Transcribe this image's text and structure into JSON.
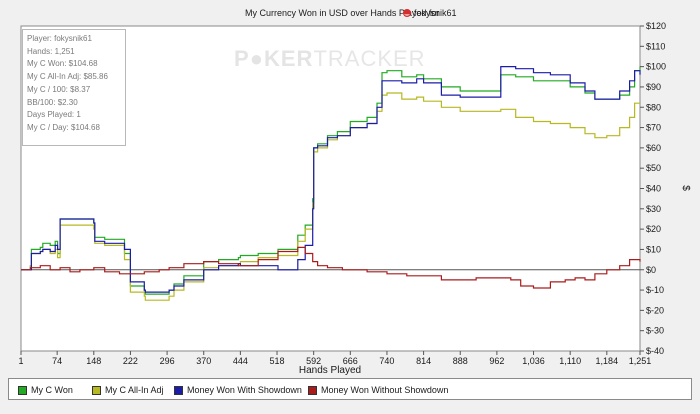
{
  "chart_data": {
    "type": "line",
    "title_prefix": "My Currency Won in USD over Hands Played for",
    "player": "fokysnik61",
    "xlabel": "Hands Played",
    "ylabel": "$",
    "x_ticks": [
      "1",
      "74",
      "148",
      "222",
      "296",
      "370",
      "444",
      "518",
      "592",
      "666",
      "740",
      "814",
      "888",
      "962",
      "1,036",
      "1,110",
      "1,184",
      "1,251"
    ],
    "x_tick_values": [
      1,
      74,
      148,
      222,
      296,
      370,
      444,
      518,
      592,
      666,
      740,
      814,
      888,
      962,
      1036,
      1110,
      1184,
      1251
    ],
    "y_ticks": [
      "$120",
      "$110",
      "$100",
      "$90",
      "$80",
      "$70",
      "$60",
      "$50",
      "$40",
      "$30",
      "$20",
      "$10",
      "$0",
      "$-10",
      "$-20",
      "$-30",
      "$-40"
    ],
    "xlim": [
      1,
      1251
    ],
    "ylim": [
      -40,
      120
    ],
    "grid": false,
    "series": [
      {
        "name": "My C Won",
        "color": "#22aa22",
        "x": [
          1,
          20,
          22,
          40,
          45,
          60,
          70,
          75,
          80,
          148,
          150,
          170,
          210,
          222,
          250,
          252,
          300,
          310,
          330,
          370,
          400,
          440,
          444,
          480,
          520,
          560,
          575,
          590,
          592,
          600,
          620,
          640,
          666,
          700,
          720,
          730,
          740,
          770,
          800,
          814,
          850,
          888,
          962,
          970,
          1000,
          1036,
          1070,
          1110,
          1140,
          1160,
          1184,
          1210,
          1230,
          1240,
          1251
        ],
        "y": [
          0,
          2,
          10,
          11,
          13,
          12,
          14,
          8,
          25,
          23,
          16,
          15,
          8,
          -8,
          -10,
          -12,
          -10,
          -7,
          -3,
          4,
          5,
          6,
          7,
          8,
          10,
          17,
          22,
          35,
          60,
          62,
          66,
          68,
          73,
          75,
          82,
          97,
          98,
          95,
          96,
          94,
          90,
          88,
          88,
          96,
          95,
          93,
          93,
          90,
          87,
          84,
          84,
          86,
          90,
          98,
          100
        ]
      },
      {
        "name": "My C All-In Adj",
        "color": "#b8b820",
        "x": [
          1,
          20,
          22,
          40,
          45,
          60,
          70,
          75,
          80,
          148,
          150,
          170,
          210,
          222,
          250,
          252,
          300,
          310,
          330,
          370,
          400,
          440,
          444,
          480,
          520,
          560,
          575,
          590,
          592,
          600,
          620,
          640,
          666,
          700,
          720,
          730,
          740,
          770,
          800,
          814,
          850,
          888,
          962,
          970,
          1000,
          1036,
          1070,
          1110,
          1140,
          1160,
          1184,
          1210,
          1230,
          1240,
          1251
        ],
        "y": [
          0,
          2,
          8,
          9,
          10,
          8,
          10,
          6,
          22,
          20,
          13,
          12,
          5,
          -11,
          -13,
          -15,
          -13,
          -10,
          -6,
          1,
          2,
          3,
          4,
          6,
          7,
          14,
          20,
          33,
          58,
          60,
          64,
          66,
          70,
          72,
          78,
          86,
          87,
          84,
          85,
          83,
          80,
          78,
          78,
          79,
          75,
          73,
          72,
          70,
          67,
          65,
          66,
          70,
          75,
          82,
          82
        ]
      },
      {
        "name": "Money Won With Showdown",
        "color": "#1c1caa",
        "x": [
          1,
          20,
          22,
          40,
          45,
          60,
          70,
          75,
          80,
          148,
          150,
          170,
          210,
          222,
          250,
          252,
          300,
          310,
          330,
          370,
          400,
          440,
          444,
          480,
          520,
          560,
          575,
          590,
          592,
          600,
          620,
          640,
          666,
          700,
          720,
          730,
          740,
          770,
          800,
          814,
          850,
          888,
          962,
          970,
          1000,
          1036,
          1070,
          1110,
          1140,
          1160,
          1184,
          1210,
          1230,
          1240,
          1251
        ],
        "y": [
          0,
          0,
          8,
          9,
          10,
          9,
          12,
          10,
          25,
          23,
          14,
          13,
          10,
          -6,
          -10,
          -11,
          -10,
          -8,
          -5,
          0,
          2,
          3,
          2,
          2,
          0,
          5,
          12,
          30,
          60,
          61,
          65,
          66,
          70,
          72,
          80,
          93,
          93,
          92,
          94,
          92,
          86,
          85,
          85,
          100,
          99,
          97,
          96,
          92,
          88,
          84,
          84,
          88,
          93,
          98,
          96
        ]
      },
      {
        "name": "Money Won Without Showdown",
        "color": "#aa1c1c",
        "x": [
          1,
          20,
          40,
          60,
          80,
          100,
          120,
          148,
          170,
          200,
          222,
          250,
          280,
          300,
          330,
          370,
          400,
          440,
          480,
          520,
          540,
          560,
          575,
          590,
          600,
          620,
          650,
          700,
          740,
          780,
          814,
          850,
          888,
          920,
          962,
          990,
          1010,
          1036,
          1070,
          1100,
          1120,
          1140,
          1160,
          1184,
          1210,
          1230,
          1240,
          1251
        ],
        "y": [
          0,
          1,
          2,
          0,
          1,
          -1,
          0,
          1,
          -1,
          -2,
          -2,
          -1,
          0,
          1,
          3,
          4,
          3,
          2,
          5,
          9,
          9,
          11,
          8,
          4,
          2,
          1,
          0,
          -1,
          -2,
          -3,
          -3,
          -5,
          -5,
          -4,
          -4,
          -5,
          -8,
          -9,
          -6,
          -5,
          -4,
          -5,
          -2,
          0,
          2,
          5,
          5,
          4
        ]
      }
    ]
  },
  "stats_box": [
    "Player: fokysnik61",
    "Hands: 1,251",
    "My C Won: $104.68",
    "My C All-In Adj: $85.86",
    "My C / 100: $8.37",
    "BB/100: $2.30",
    "Days Played: 1",
    "My C / Day: $104.68"
  ],
  "watermark": {
    "part1": "P",
    "part2": "KER",
    "part3": "TRACKER"
  },
  "legend": {
    "items": [
      {
        "label": "My C Won",
        "color": "#22aa22"
      },
      {
        "label": "My C All-In Adj",
        "color": "#b8b820"
      },
      {
        "label": "Money Won With Showdown",
        "color": "#1c1caa"
      },
      {
        "label": "Money Won Without Showdown",
        "color": "#aa1c1c"
      }
    ]
  }
}
